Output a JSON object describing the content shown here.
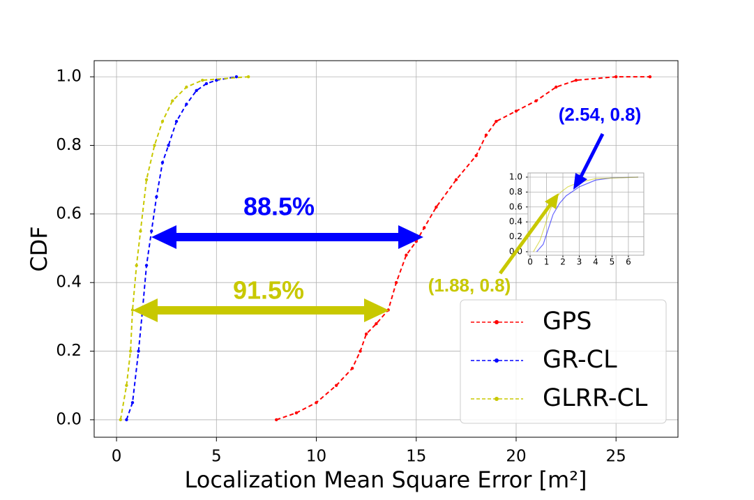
{
  "chart_data": [
    {
      "type": "line",
      "x_label": "Localization Mean Square Error [m²]",
      "y_label": "CDF",
      "xlim": [
        -1.12,
        28.1
      ],
      "ylim": [
        -0.051,
        1.047
      ],
      "xticks": [
        0,
        5,
        10,
        15,
        20,
        25
      ],
      "yticks": [
        {
          "value": 0,
          "label": "0.0"
        },
        0.2,
        0.4,
        0.6,
        0.8,
        {
          "value": 1,
          "label": "1.0"
        }
      ],
      "grid": true,
      "legend": "lower right",
      "annotations": [
        "88.5%",
        "91.5%",
        "(2.54, 0.8)",
        "(1.88, 0.8)"
      ],
      "series": [
        {
          "name": "GPS",
          "color": "#ff0000",
          "x": [
            8,
            9,
            10,
            11,
            11.8,
            12.2,
            12.5,
            13,
            13.6,
            14,
            14.5,
            15,
            15.4,
            16,
            17,
            18,
            18.5,
            19,
            20,
            21,
            22,
            23,
            25,
            26.7
          ],
          "values": [
            0,
            0.02,
            0.05,
            0.1,
            0.15,
            0.2,
            0.25,
            0.28,
            0.32,
            0.4,
            0.48,
            0.52,
            0.56,
            0.62,
            0.7,
            0.77,
            0.83,
            0.87,
            0.9,
            0.93,
            0.97,
            0.99,
            1.0,
            1.0
          ]
        },
        {
          "name": "GR-CL",
          "color": "#0000ff",
          "x": [
            0.5,
            0.8,
            1.1,
            1.3,
            1.5,
            1.75,
            2,
            2.3,
            2.6,
            3,
            3.5,
            4,
            4.5,
            5,
            6
          ],
          "values": [
            0,
            0.05,
            0.2,
            0.32,
            0.45,
            0.55,
            0.65,
            0.75,
            0.8,
            0.87,
            0.92,
            0.96,
            0.98,
            0.99,
            1.0
          ]
        },
        {
          "name": "GLRR-CL",
          "color": "#c8c800",
          "x": [
            0.2,
            0.5,
            0.7,
            0.8,
            1.0,
            1.2,
            1.5,
            1.9,
            2.3,
            2.8,
            3.5,
            4.3,
            6.6
          ],
          "values": [
            0,
            0.1,
            0.2,
            0.32,
            0.45,
            0.55,
            0.7,
            0.8,
            0.87,
            0.93,
            0.97,
            0.99,
            1.0
          ]
        }
      ]
    },
    {
      "type": "line",
      "xlim": [
        -0.13,
        6.94
      ],
      "ylim": [
        -0.047,
        1.056
      ],
      "xticks": [
        0,
        1,
        2,
        3,
        4,
        5,
        6
      ],
      "yticks": [
        {
          "value": 0,
          "label": "0.0"
        },
        0.2,
        0.4,
        0.6,
        0.8,
        {
          "value": 1,
          "label": "1.0"
        }
      ],
      "grid": true,
      "series": [
        {
          "color": "#0000ff",
          "x": [
            0.4,
            0.8,
            1.1,
            1.4,
            1.8,
            2.2,
            2.54,
            3,
            4,
            5,
            6.6
          ],
          "values": [
            0,
            0.1,
            0.3,
            0.5,
            0.65,
            0.75,
            0.8,
            0.87,
            0.96,
            0.99,
            1.0
          ]
        },
        {
          "color": "#c8c800",
          "x": [
            0.2,
            0.6,
            0.9,
            1.2,
            1.5,
            1.88,
            2.3,
            3,
            4,
            6.6
          ],
          "values": [
            0,
            0.15,
            0.35,
            0.55,
            0.7,
            0.8,
            0.87,
            0.93,
            0.98,
            1.0
          ]
        }
      ]
    }
  ]
}
